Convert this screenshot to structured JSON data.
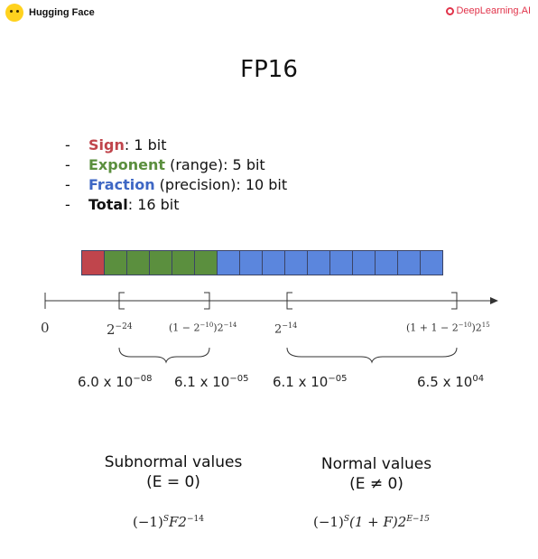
{
  "header": {
    "left_logo_text": "Hugging Face",
    "right_logo_text": "DeepLearning.AI"
  },
  "title": "FP16",
  "bullets": [
    {
      "term": "Sign",
      "rest": ": 1 bit"
    },
    {
      "term": "Exponent",
      "rest": " (range): 5 bit"
    },
    {
      "term": "Fraction",
      "rest": " (precision): 10 bit"
    },
    {
      "term": "Total",
      "rest": ": 16 bit"
    }
  ],
  "bits": {
    "sign": 1,
    "exponent": 5,
    "fraction": 10
  },
  "axis": {
    "zero": "0",
    "sub_min_base": "2",
    "sub_min_exp": "−24",
    "sub_max_base": "(1 − 2",
    "sub_max_exp_inner": "−10",
    "sub_max_tail": ")2",
    "sub_max_exp": "−14",
    "norm_min_base": "2",
    "norm_min_exp": "−14",
    "norm_max_base": "(1 + 1 − 2",
    "norm_max_exp_inner": "−10",
    "norm_max_tail": ")2",
    "norm_max_exp": "15"
  },
  "values": {
    "sub_min_mant": "6.0 x 10",
    "sub_min_exp": "−08",
    "sub_max_mant": "6.1 x 10",
    "sub_max_exp": "−05",
    "norm_min_mant": "6.1 x 10",
    "norm_min_exp": "−05",
    "norm_max_mant": "6.5 x 10",
    "norm_max_exp": "04"
  },
  "subnormal": {
    "title": "Subnormal values",
    "condition": "(E = 0)",
    "formula_a": "(−1)",
    "formula_s": "S",
    "formula_b": "F2",
    "formula_exp": "−14"
  },
  "normal": {
    "title": "Normal values",
    "condition": "(E ≠ 0)",
    "formula_a": "(−1)",
    "formula_s": "S",
    "formula_b": "(1 + F)2",
    "formula_exp": "E−15"
  },
  "colors": {
    "sign": "#c0454c",
    "exponent": "#5b8f3e",
    "fraction": "#3e67c4",
    "brand_red": "#e1334a"
  }
}
